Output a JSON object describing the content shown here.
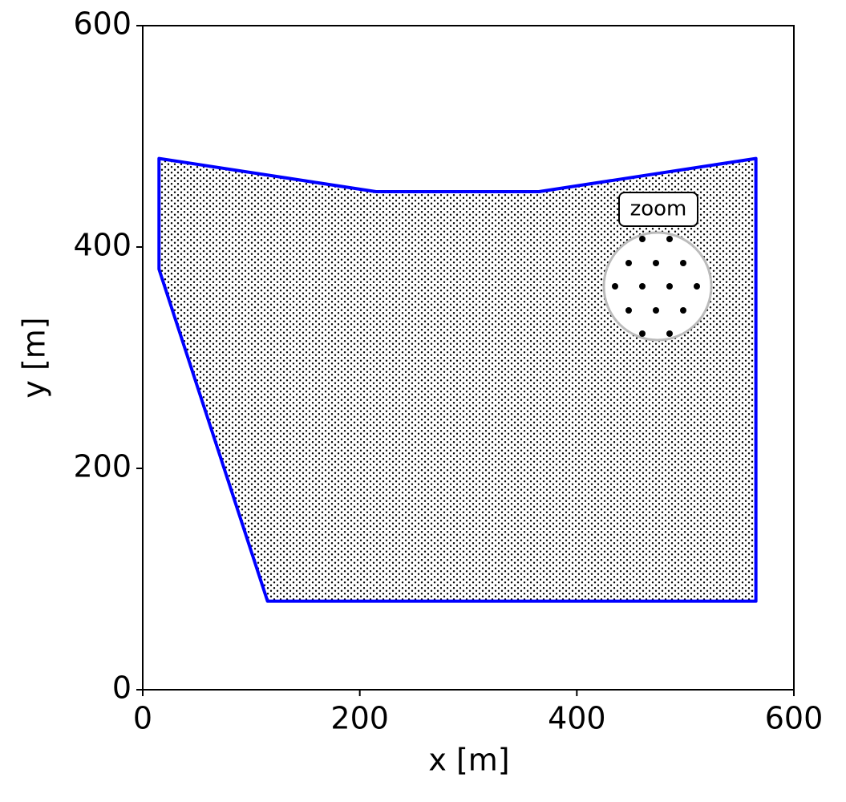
{
  "chart_data": {
    "type": "polygon",
    "x": [
      15,
      15,
      115,
      565,
      565,
      365,
      215
    ],
    "y": [
      480,
      380,
      80,
      80,
      480,
      450,
      450
    ],
    "color": "#0000ff",
    "xlabel": "x [m]",
    "ylabel": "y [m]",
    "annotation": "zoom",
    "xlim": [
      0,
      600
    ],
    "ylim": [
      0,
      600
    ],
    "xticks": [
      0,
      200,
      400,
      600
    ],
    "yticks": [
      0,
      200,
      400,
      600
    ],
    "grid": false
  }
}
